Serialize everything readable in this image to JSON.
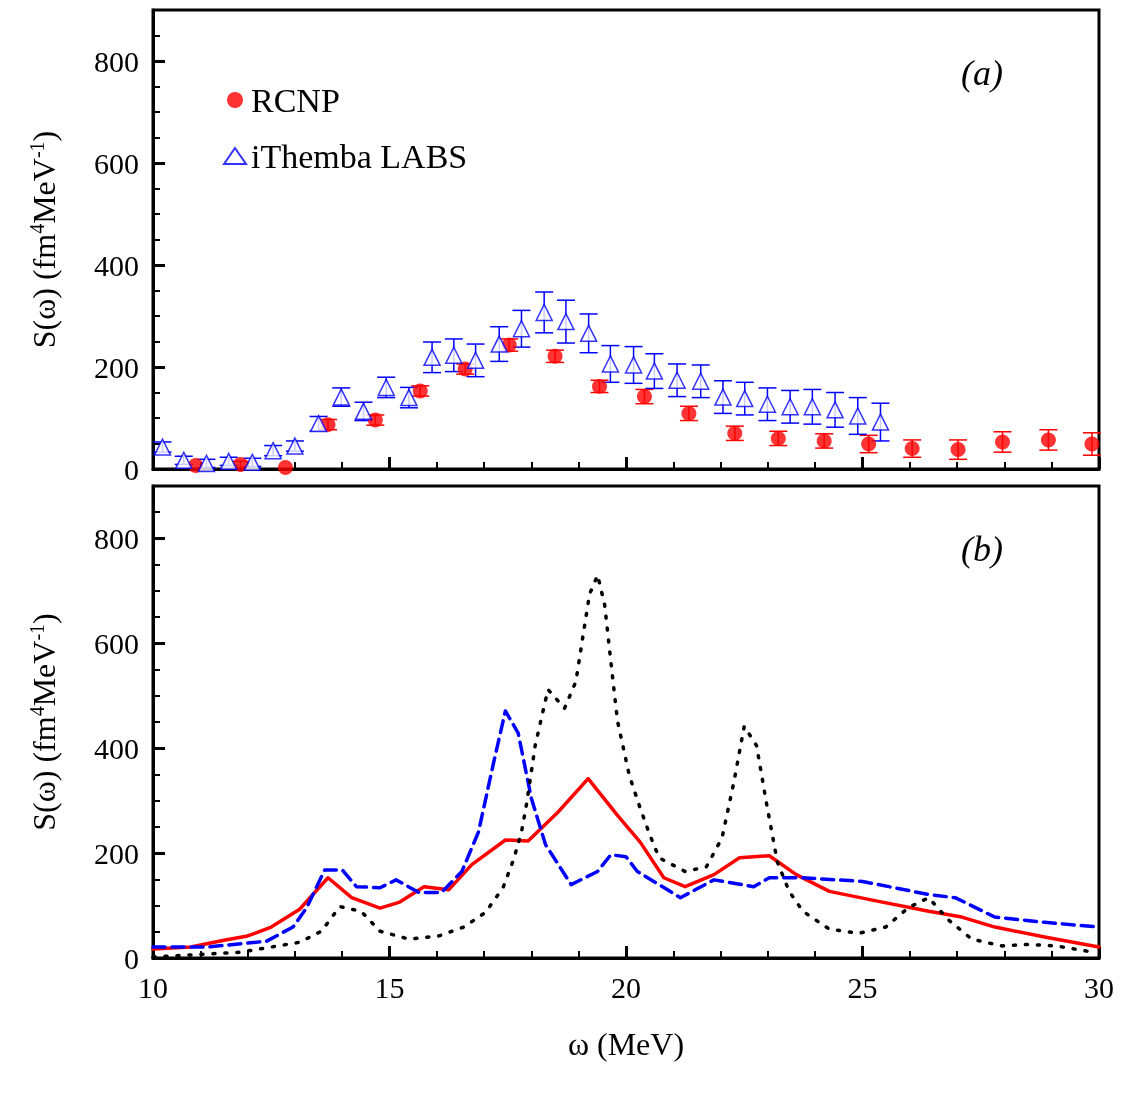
{
  "chart_data": [
    {
      "type": "scatter",
      "ylabel": "S(ω) (fm$^{4}$MeV$^{-1}$)",
      "annotations": [
        "(a)"
      ],
      "xlim": [
        10,
        30
      ],
      "ylim": [
        0,
        900
      ],
      "xticks": [
        10,
        15,
        20,
        25,
        30
      ],
      "yticks": [
        0,
        200,
        400,
        600,
        800
      ],
      "tick_labels": "y",
      "legend": "top left",
      "grid": false,
      "series": [
        {
          "name": "RCNP",
          "color": "#ff0000",
          "marker": "circle",
          "x": [
            10.9,
            11.85,
            12.8,
            13.7,
            14.7,
            15.65,
            16.6,
            17.53,
            18.5,
            19.44,
            20.39,
            21.33,
            22.3,
            23.22,
            24.19,
            25.13,
            26.05,
            27.02,
            27.96,
            28.93,
            29.85
          ],
          "values": [
            7,
            9,
            3,
            87,
            96,
            153,
            196,
            243,
            221,
            162,
            142,
            109,
            70,
            60,
            55,
            49,
            40,
            38,
            53,
            57,
            49
          ],
          "errors": [
            null,
            6,
            null,
            10,
            10,
            10,
            10,
            12,
            12,
            12,
            14,
            14,
            14,
            14,
            14,
            17,
            17,
            19,
            20,
            20,
            22
          ]
        },
        {
          "name": "iThemba LABS",
          "color": "#0000ff",
          "marker": "triangle",
          "x": [
            10.2,
            10.65,
            11.13,
            11.6,
            12.1,
            12.54,
            13.0,
            13.5,
            13.98,
            14.45,
            14.93,
            15.41,
            15.9,
            16.36,
            16.82,
            17.32,
            17.79,
            18.27,
            18.73,
            19.21,
            19.67,
            20.16,
            20.6,
            21.08,
            21.58,
            22.05,
            22.51,
            22.99,
            23.47,
            23.94,
            24.42,
            24.9,
            25.38
          ],
          "values": [
            43,
            17,
            11,
            15,
            13,
            36,
            45,
            89,
            141,
            113,
            160,
            140,
            219,
            223,
            213,
            245,
            275,
            307,
            289,
            266,
            206,
            204,
            192,
            174,
            172,
            141,
            138,
            127,
            122,
            122,
            116,
            104,
            92
          ],
          "errors": [
            10,
            8,
            8,
            8,
            8,
            10,
            10,
            14,
            18,
            18,
            20,
            20,
            30,
            32,
            32,
            34,
            36,
            40,
            42,
            38,
            36,
            36,
            34,
            32,
            32,
            32,
            32,
            32,
            32,
            34,
            34,
            36,
            37
          ]
        }
      ]
    },
    {
      "type": "line",
      "xlabel": "ω (MeV)",
      "ylabel": "S(ω) (fm$^{4}$MeV$^{-1}$)",
      "annotations": [
        "(b)"
      ],
      "xlim": [
        10,
        30
      ],
      "ylim": [
        0,
        900
      ],
      "xticks": [
        10,
        15,
        20,
        25,
        30
      ],
      "yticks": [
        0,
        200,
        400,
        600,
        800
      ],
      "marker": "none",
      "grid": false,
      "series": [
        {
          "color": "#ff0000",
          "line_style": "solid",
          "x": [
            10,
            10.8,
            11.5,
            12.0,
            12.5,
            13.1,
            13.7,
            14.2,
            14.8,
            15.2,
            15.73,
            16.25,
            16.74,
            17.45,
            17.93,
            18.56,
            19.2,
            19.82,
            20.3,
            20.8,
            21.25,
            21.86,
            22.4,
            23.03,
            23.6,
            24.3,
            25.34,
            26.4,
            27.1,
            27.8,
            28.85,
            30
          ],
          "values": [
            17,
            21,
            34,
            42,
            59,
            93,
            153,
            115,
            95,
            106,
            136,
            130,
            178,
            225,
            223,
            278,
            342,
            272,
            221,
            153,
            136,
            159,
            191,
            195,
            159,
            127,
            108,
            89,
            78,
            59,
            40,
            21
          ]
        },
        {
          "color": "#0000ff",
          "line_style": "dashed",
          "x": [
            10,
            11.15,
            12.4,
            12.96,
            13.25,
            13.63,
            14.0,
            14.3,
            14.8,
            15.14,
            15.62,
            16.1,
            16.53,
            16.88,
            17.2,
            17.45,
            17.72,
            18.0,
            18.3,
            18.84,
            19.4,
            19.68,
            20.0,
            20.24,
            21.15,
            21.86,
            22.7,
            23.03,
            23.74,
            25.0,
            26.4,
            26.96,
            27.8,
            28.85,
            30
          ],
          "values": [
            21,
            21,
            32,
            59,
            96,
            168,
            168,
            136,
            134,
            149,
            125,
            125,
            165,
            240,
            372,
            471,
            429,
            304,
            216,
            140,
            165,
            197,
            193,
            165,
            115,
            149,
            136,
            153,
            153,
            146,
            121,
            115,
            78,
            68,
            59
          ]
        },
        {
          "color": "#000000",
          "line_style": "dotted",
          "x": [
            10,
            11.85,
            13.1,
            13.56,
            13.95,
            14.4,
            14.8,
            15.41,
            16.04,
            16.57,
            17.03,
            17.4,
            17.62,
            17.79,
            17.9,
            18.08,
            18.35,
            18.7,
            18.94,
            19.13,
            19.23,
            19.4,
            19.55,
            19.68,
            19.82,
            20.07,
            20.28,
            20.49,
            20.7,
            21.25,
            21.7,
            22.03,
            22.28,
            22.5,
            22.76,
            22.97,
            23.2,
            23.45,
            23.74,
            24.3,
            24.92,
            25.49,
            25.97,
            26.4,
            26.8,
            27.31,
            27.95,
            28.5,
            29.1,
            29.75
          ],
          "values": [
            2,
            11,
            30,
            51,
            98,
            89,
            51,
            36,
            42,
            59,
            87,
            134,
            187,
            240,
            295,
            405,
            512,
            476,
            527,
            637,
            694,
            730,
            673,
            565,
            452,
            348,
            291,
            238,
            191,
            165,
            174,
            229,
            335,
            442,
            405,
            295,
            183,
            127,
            89,
            55,
            47,
            59,
            96,
            115,
            74,
            36,
            23,
            26,
            23,
            13
          ]
        }
      ]
    }
  ]
}
